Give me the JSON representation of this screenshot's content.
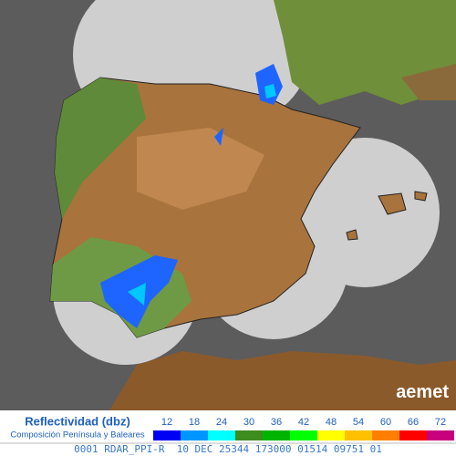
{
  "legend": {
    "title": "Reflectividad (dbz)",
    "subtitle": "Composición Península y Baleares",
    "ticks": [
      12,
      18,
      24,
      30,
      36,
      42,
      48,
      54,
      60,
      66,
      72
    ],
    "colors": [
      "#0000f5",
      "#0096ff",
      "#00ffff",
      "#3c8c1e",
      "#00b400",
      "#00ff00",
      "#ffff00",
      "#ffc000",
      "#ff8000",
      "#ff0000",
      "#c8007d"
    ]
  },
  "logo": "aemet",
  "footer": "0001 RDAR_PPI-R  10 DEC 25344 173000 01514 09751 01"
}
